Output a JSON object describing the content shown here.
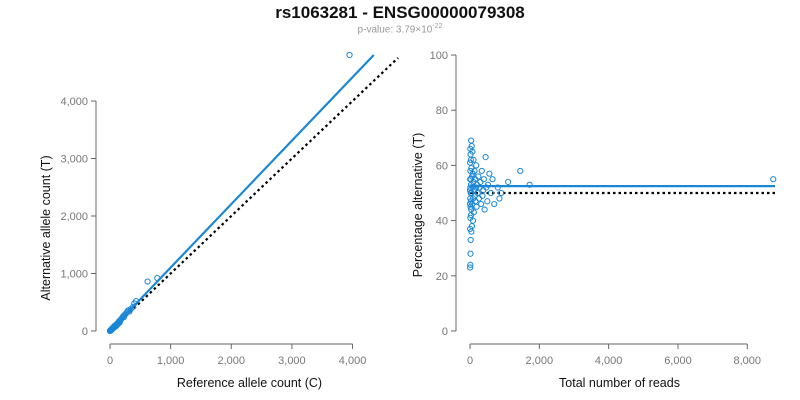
{
  "title": "rs1063281 - ENSG00000079308",
  "subtitle": {
    "prefix": "p-value: 3.79×10",
    "exponent": "-22"
  },
  "colors": {
    "points": "#1a87d6",
    "fit_line": "#1a87d6",
    "reference_line": "#000000",
    "tick_text": "#777777"
  },
  "chart_data": [
    {
      "type": "scatter",
      "xlabel": "Reference allele count (C)",
      "ylabel": "Alternative allele count (T)",
      "xlim": [
        0,
        4700
      ],
      "ylim": [
        0,
        4800
      ],
      "xticks": [
        0,
        1000,
        2000,
        3000,
        4000
      ],
      "xtick_labels": [
        "0",
        "1,000",
        "2,000",
        "3,000",
        "4,000"
      ],
      "yticks": [
        0,
        1000,
        2000,
        3000,
        4000
      ],
      "ytick_labels": [
        "0",
        "1,000",
        "2,000",
        "3,000",
        "4,000"
      ],
      "points": [
        [
          3950,
          4800
        ],
        [
          780,
          920
        ],
        [
          620,
          860
        ],
        [
          430,
          520
        ],
        [
          400,
          480
        ],
        [
          380,
          420
        ],
        [
          340,
          380
        ],
        [
          320,
          340
        ],
        [
          300,
          360
        ],
        [
          280,
          330
        ],
        [
          260,
          300
        ],
        [
          240,
          280
        ],
        [
          230,
          240
        ],
        [
          220,
          260
        ],
        [
          200,
          230
        ],
        [
          180,
          200
        ],
        [
          170,
          180
        ],
        [
          160,
          150
        ],
        [
          150,
          170
        ],
        [
          140,
          140
        ],
        [
          130,
          120
        ],
        [
          120,
          130
        ],
        [
          110,
          100
        ],
        [
          100,
          110
        ],
        [
          95,
          80
        ],
        [
          90,
          95
        ],
        [
          80,
          75
        ],
        [
          70,
          85
        ],
        [
          65,
          60
        ],
        [
          60,
          70
        ],
        [
          55,
          50
        ],
        [
          50,
          55
        ],
        [
          45,
          40
        ],
        [
          40,
          45
        ],
        [
          35,
          30
        ],
        [
          30,
          38
        ],
        [
          28,
          25
        ],
        [
          25,
          28
        ],
        [
          20,
          22
        ],
        [
          18,
          15
        ],
        [
          15,
          18
        ],
        [
          12,
          10
        ],
        [
          10,
          14
        ],
        [
          8,
          6
        ],
        [
          6,
          9
        ],
        [
          5,
          4
        ],
        [
          4,
          6
        ],
        [
          3,
          2
        ],
        [
          2,
          3
        ],
        [
          1,
          1
        ]
      ],
      "fit_line": [
        [
          0,
          0
        ],
        [
          4350,
          4800
        ]
      ],
      "reference_line": [
        [
          0,
          0
        ],
        [
          4750,
          4750
        ]
      ]
    },
    {
      "type": "scatter",
      "xlabel": "Total number of reads",
      "ylabel": "Percentage alternative (T)",
      "xlim": [
        0,
        8800
      ],
      "ylim": [
        0,
        100
      ],
      "xticks": [
        0,
        2000,
        4000,
        6000,
        8000
      ],
      "xtick_labels": [
        "0",
        "2,000",
        "4,000",
        "6,000",
        "8,000"
      ],
      "yticks": [
        0,
        20,
        40,
        60,
        80,
        100
      ],
      "ytick_labels": [
        "0",
        "20",
        "40",
        "60",
        "80",
        "100"
      ],
      "points": [
        [
          8750,
          55
        ],
        [
          1720,
          53
        ],
        [
          1450,
          58
        ],
        [
          1100,
          54
        ],
        [
          900,
          50
        ],
        [
          850,
          48
        ],
        [
          800,
          52
        ],
        [
          700,
          46
        ],
        [
          650,
          55
        ],
        [
          600,
          50
        ],
        [
          560,
          57
        ],
        [
          520,
          53
        ],
        [
          500,
          47
        ],
        [
          470,
          52
        ],
        [
          450,
          63
        ],
        [
          420,
          44
        ],
        [
          400,
          55
        ],
        [
          380,
          51
        ],
        [
          360,
          49
        ],
        [
          340,
          58
        ],
        [
          320,
          46
        ],
        [
          300,
          54
        ],
        [
          280,
          52
        ],
        [
          260,
          48
        ],
        [
          240,
          56
        ],
        [
          220,
          50
        ],
        [
          200,
          53
        ],
        [
          190,
          45
        ],
        [
          180,
          60
        ],
        [
          170,
          52
        ],
        [
          160,
          47
        ],
        [
          150,
          55
        ],
        [
          140,
          49
        ],
        [
          130,
          58
        ],
        [
          120,
          51
        ],
        [
          110,
          43
        ],
        [
          100,
          62
        ],
        [
          95,
          54
        ],
        [
          90,
          48
        ],
        [
          85,
          40
        ],
        [
          80,
          57
        ],
        [
          75,
          52
        ],
        [
          70,
          65
        ],
        [
          65,
          46
        ],
        [
          60,
          56
        ],
        [
          55,
          38
        ],
        [
          50,
          67
        ],
        [
          45,
          50
        ],
        [
          40,
          36
        ],
        [
          38,
          59
        ],
        [
          35,
          44
        ],
        [
          32,
          69
        ],
        [
          30,
          53
        ],
        [
          28,
          42
        ],
        [
          26,
          47
        ],
        [
          24,
          62
        ],
        [
          22,
          55
        ],
        [
          20,
          33
        ],
        [
          18,
          50
        ],
        [
          16,
          64
        ],
        [
          15,
          45
        ],
        [
          14,
          28
        ],
        [
          12,
          58
        ],
        [
          11,
          52
        ],
        [
          10,
          41
        ],
        [
          9,
          24
        ],
        [
          8,
          66
        ],
        [
          7,
          48
        ],
        [
          6,
          55
        ],
        [
          5,
          37
        ],
        [
          4,
          61
        ],
        [
          3,
          23
        ],
        [
          2,
          51
        ],
        [
          1,
          46
        ]
      ],
      "fit_line": [
        [
          0,
          52.5
        ],
        [
          8800,
          52.5
        ]
      ],
      "reference_line": [
        [
          0,
          50
        ],
        [
          8800,
          50
        ]
      ]
    }
  ]
}
